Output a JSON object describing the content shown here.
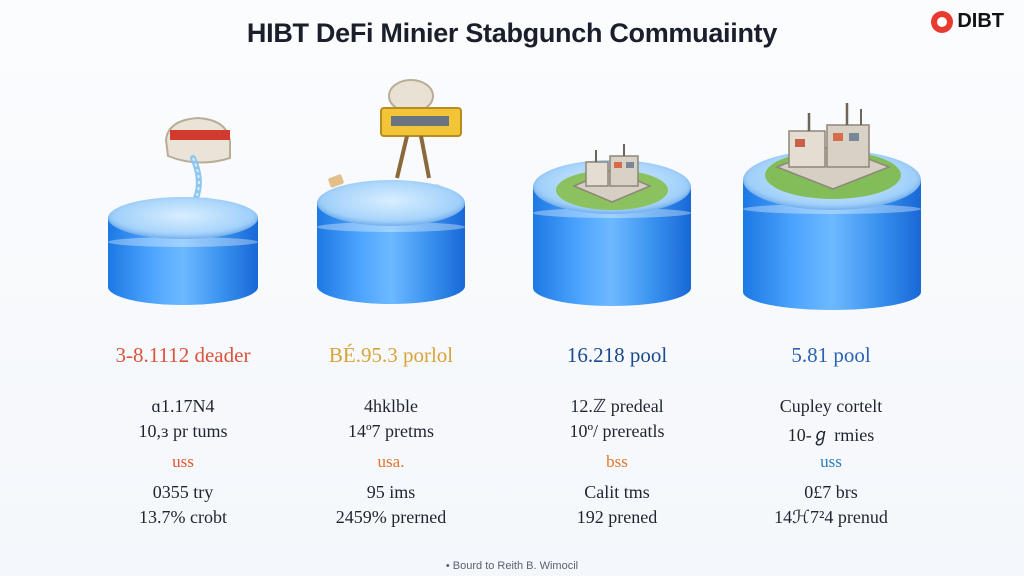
{
  "header": {
    "title": "HIBT DeFi Minier Stabgunch Commuaiinty",
    "logo_text": "DIBT"
  },
  "columns": [
    {
      "headline": "3-8.1112 deader",
      "headline_color": "#d9543a",
      "line1": "ɑ1.17Ν4",
      "line2": "10,ɜ pr tums",
      "currency": "uss",
      "currency_color": "#e2572f",
      "line4": "0355 try",
      "line5": "13.7% crobt"
    },
    {
      "headline": "BÉ.95.3 porlol",
      "headline_color": "#d8a33a",
      "line1": "4hklble",
      "line2": "14º7 pretms",
      "currency": "usa.",
      "currency_color": "#e2772f",
      "line4": "95 ims",
      "line5": "2459% prerned"
    },
    {
      "headline": "16.218 pool",
      "headline_color": "#1b4b8f",
      "line1": "12.ℤ predeal",
      "line2": "10º/ prereatls",
      "currency": "bss",
      "currency_color": "#e2772f",
      "line4": "Calit tms",
      "line5": "192 prened"
    },
    {
      "headline": "5.81 pool",
      "headline_color": "#2b63b3",
      "line1": "Cupley cortelt",
      "line2": "10-ℊ rmies",
      "currency": "uss",
      "currency_color": "#2b7dc0",
      "line4": "0£7 brs",
      "line5": "14ℋ7²4 prenud"
    }
  ],
  "footer": {
    "text": "• Bourd to Reith B. Wimocil"
  }
}
